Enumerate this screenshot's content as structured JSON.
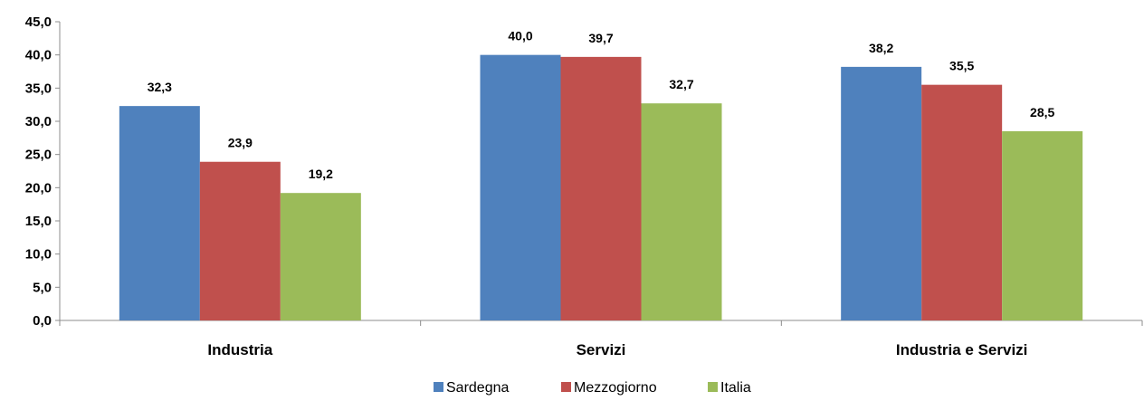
{
  "chart_data": {
    "type": "bar",
    "categories": [
      "Industria",
      "Servizi",
      "Industria e Servizi"
    ],
    "series": [
      {
        "name": "Sardegna",
        "color": "#4f81bd",
        "values": [
          32.3,
          40.0,
          38.2
        ],
        "labels": [
          "32,3",
          "40,0",
          "38,2"
        ]
      },
      {
        "name": "Mezzogiorno",
        "color": "#c0504d",
        "values": [
          23.9,
          39.7,
          35.5
        ],
        "labels": [
          "23,9",
          "39,7",
          "35,5"
        ]
      },
      {
        "name": "Italia",
        "color": "#9bbb59",
        "values": [
          19.2,
          32.7,
          28.5
        ],
        "labels": [
          "19,2",
          "32,7",
          "28,5"
        ]
      }
    ],
    "ylim": [
      0,
      45
    ],
    "yticks": [
      0,
      5,
      10,
      15,
      20,
      25,
      30,
      35,
      40,
      45
    ],
    "ytick_labels": [
      "0,0",
      "5,0",
      "10,0",
      "15,0",
      "20,0",
      "25,0",
      "30,0",
      "35,0",
      "40,0",
      "45,0"
    ],
    "title": "",
    "xlabel": "",
    "ylabel": "",
    "grid": false,
    "legend_position": "bottom"
  }
}
